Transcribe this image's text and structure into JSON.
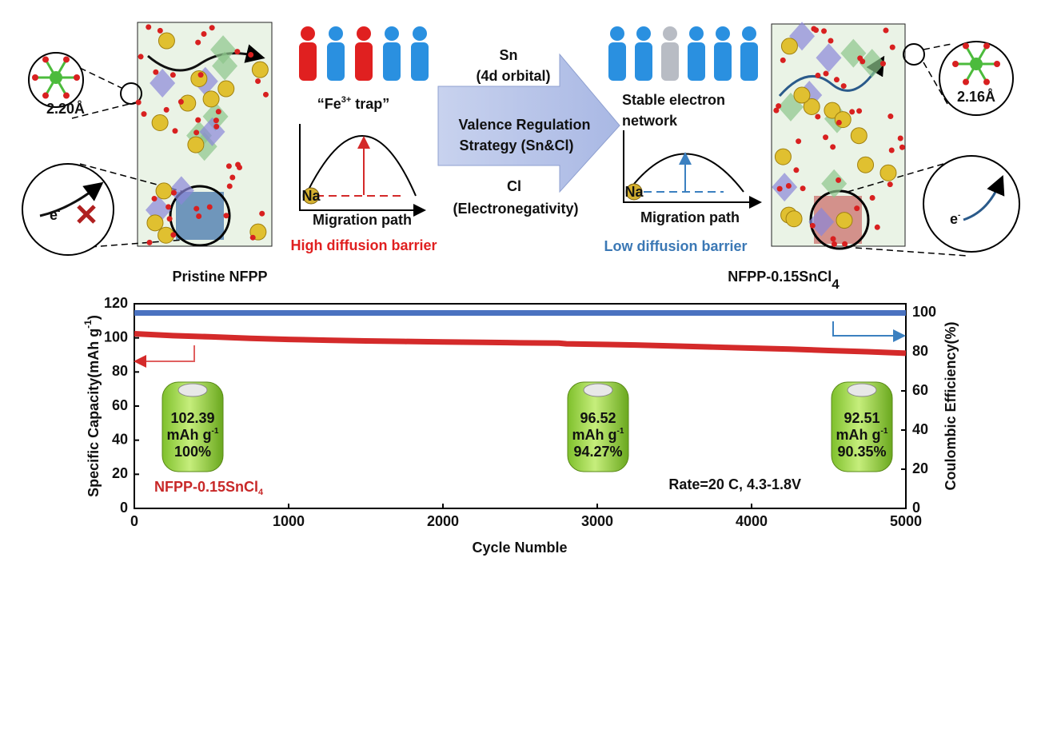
{
  "left": {
    "bond": "2.20Å",
    "electron": [
      "e",
      "-"
    ],
    "fe_trap": [
      "“Fe",
      "3+",
      " trap”"
    ],
    "na": "Na",
    "migration_path": "Migration path",
    "barrier": "High diffusion barrier",
    "title": "Pristine NFPP"
  },
  "middle": {
    "sn": "Sn",
    "sn_note": "(4d orbital)",
    "strategy": [
      "Valence Regulation",
      "Strategy (Sn&Cl)"
    ],
    "cl": "Cl",
    "cl_note": "(Electronegativity)"
  },
  "right": {
    "bond": "2.16Å",
    "electron": [
      "e",
      "-"
    ],
    "stable": [
      "Stable electron",
      "network"
    ],
    "na": "Na",
    "migration_path": "Migration path",
    "barrier": "Low diffusion barrier",
    "title": [
      "NFPP-0.15SnCl",
      "4"
    ]
  },
  "chart_data": {
    "type": "line",
    "x": [
      0,
      250,
      500,
      750,
      1000,
      1250,
      1500,
      1750,
      2000,
      2250,
      2500,
      2750,
      2800,
      3000,
      3250,
      3500,
      3750,
      4000,
      4250,
      4500,
      4750,
      5000
    ],
    "series": [
      {
        "color": "#d42a2a",
        "values": [
          102.4,
          101.3,
          100.6,
          99.7,
          99.1,
          98.6,
          98.2,
          97.9,
          97.6,
          97.4,
          97.1,
          96.9,
          96.5,
          96.2,
          95.8,
          95.2,
          94.6,
          94,
          93.4,
          92.6,
          91.9,
          91
        ]
      },
      {
        "color": "#4a72c0",
        "axis": "y2",
        "values": [
          99.8,
          99.8,
          99.8,
          99.8,
          99.8,
          99.8,
          99.8,
          99.8,
          99.8,
          99.8,
          99.8,
          99.8,
          99.8,
          99.8,
          99.8,
          99.8,
          99.8,
          99.8,
          99.8,
          99.8,
          99.8,
          99.8
        ]
      }
    ],
    "xlim": [
      0,
      5000
    ],
    "xticks": [
      0,
      1000,
      2000,
      3000,
      4000,
      5000
    ],
    "ylim": [
      0,
      120
    ],
    "yticks": [
      0,
      20,
      40,
      60,
      80,
      100,
      120
    ],
    "y2lim": [
      0,
      104.5
    ],
    "y2ticks": [
      0,
      20,
      40,
      60,
      80,
      100
    ],
    "xlabel": "Cycle Numble",
    "ylabel": [
      "Specific Capacity(mAh g",
      "-1",
      ")"
    ],
    "y2label": "Coulombic Efficiency(%)",
    "series_label": [
      "NFPP-0.15SnCl",
      "4"
    ],
    "rate": "Rate=20 C, 4.3-1.8V",
    "batteries": [
      {
        "capacity": "102.39",
        "unit": [
          "mAh g",
          "-1"
        ],
        "retention": "100%"
      },
      {
        "capacity": "96.52",
        "unit": [
          "mAh g",
          "-1"
        ],
        "retention": "94.27%"
      },
      {
        "capacity": "92.51",
        "unit": [
          "mAh g",
          "-1"
        ],
        "retention": "90.35%"
      }
    ]
  }
}
